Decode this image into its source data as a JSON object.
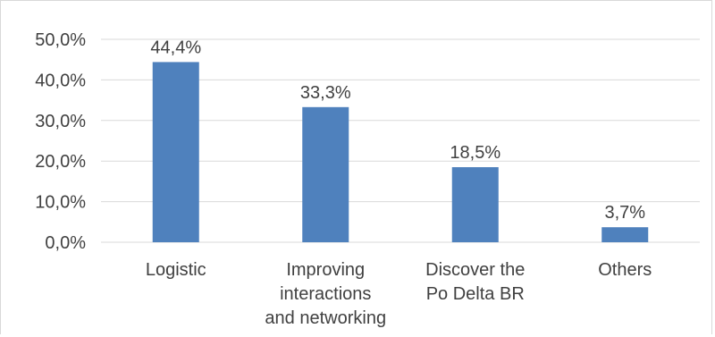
{
  "chart_data": {
    "type": "bar",
    "categories": [
      "Logistic",
      "Improving interactions and networking",
      "Discover the Po Delta BR",
      "Others"
    ],
    "category_lines": [
      [
        "Logistic"
      ],
      [
        "Improving",
        "interactions",
        "and networking"
      ],
      [
        "Discover the",
        "Po Delta BR"
      ],
      [
        "Others"
      ]
    ],
    "values": [
      44.4,
      33.3,
      18.5,
      3.7
    ],
    "data_labels": [
      "44,4%",
      "33,3%",
      "18,5%",
      "3,7%"
    ],
    "y_ticks": [
      0,
      10,
      20,
      30,
      40,
      50
    ],
    "y_tick_labels": [
      "0,0%",
      "10,0%",
      "20,0%",
      "30,0%",
      "40,0%",
      "50,0%"
    ],
    "ylim": [
      0,
      50
    ],
    "grid": true,
    "title": "",
    "xlabel": "",
    "ylabel": "",
    "colors": {
      "bar": "#4f81bd",
      "grid": "#d9d9d9",
      "text": "#404040"
    }
  }
}
